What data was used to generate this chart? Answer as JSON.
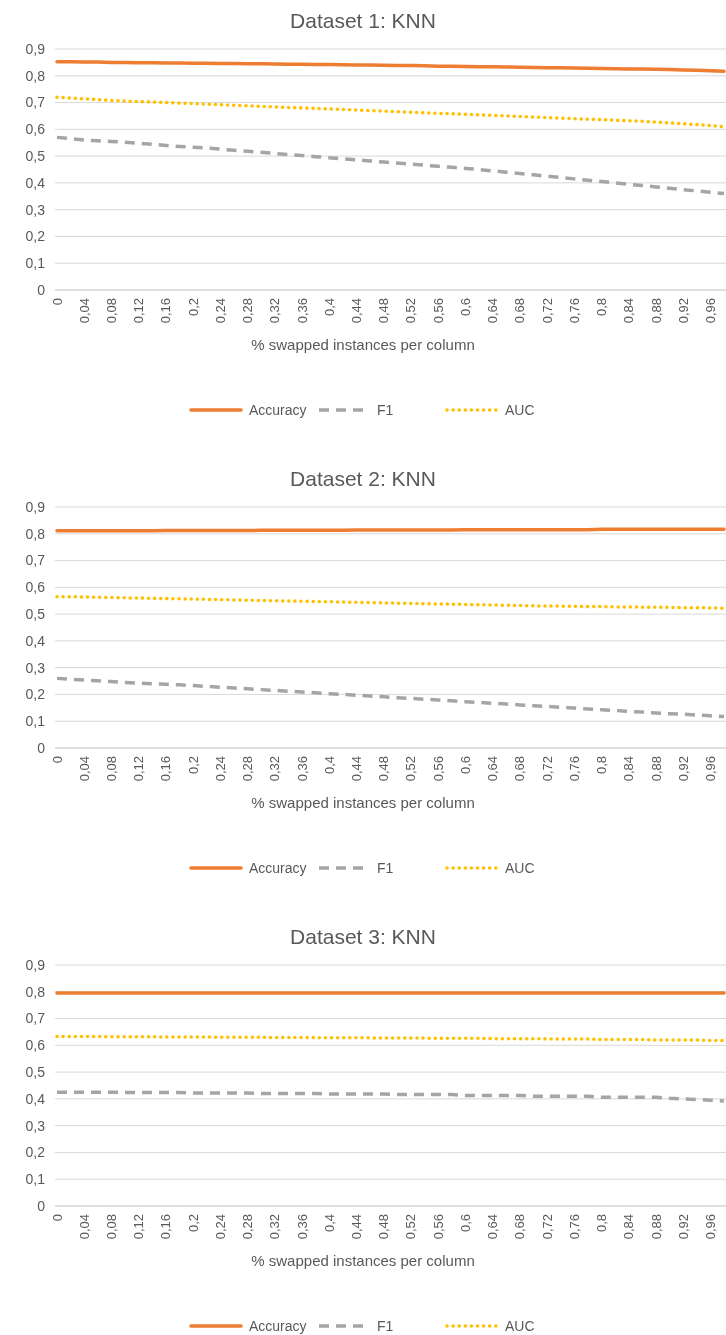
{
  "chart_data": [
    {
      "type": "line",
      "title": "Dataset 1: KNN",
      "xlabel": "% swapped instances per column",
      "categories": [
        "0",
        null,
        "0,04",
        null,
        "0,08",
        null,
        "0,12",
        null,
        "0,16",
        null,
        "0,2",
        null,
        "0,24",
        null,
        "0,28",
        null,
        "0,32",
        null,
        "0,36",
        null,
        "0,4",
        null,
        "0,44",
        null,
        "0,48",
        null,
        "0,52",
        null,
        "0,56",
        null,
        "0,6",
        null,
        "0,64",
        null,
        "0,68",
        null,
        "0,72",
        null,
        "0,76",
        null,
        "0,8",
        null,
        "0,84",
        null,
        "0,88",
        null,
        "0,92",
        null,
        "0,96",
        null
      ],
      "ylim": [
        0,
        0.9
      ],
      "yticks": [
        {
          "value": 0,
          "label": "0"
        },
        {
          "value": 0.1,
          "label": "0,1"
        },
        {
          "value": 0.2,
          "label": "0,2"
        },
        {
          "value": 0.3,
          "label": "0,3"
        },
        {
          "value": 0.4,
          "label": "0,4"
        },
        {
          "value": 0.5,
          "label": "0,5"
        },
        {
          "value": 0.6,
          "label": "0,6"
        },
        {
          "value": 0.7,
          "label": "0,7"
        },
        {
          "value": 0.8,
          "label": "0,8"
        },
        {
          "value": 0.9,
          "label": "0,9"
        }
      ],
      "grid": "y",
      "legend": "bottom",
      "series": [
        {
          "name": "Accuracy",
          "color": "#ed7d31",
          "line_style": "solid",
          "values": [
            0.852,
            0.852,
            0.851,
            0.851,
            0.85,
            0.85,
            0.849,
            0.849,
            0.848,
            0.848,
            0.847,
            0.847,
            0.846,
            0.846,
            0.845,
            0.845,
            0.844,
            0.843,
            0.843,
            0.842,
            0.842,
            0.841,
            0.84,
            0.84,
            0.839,
            0.838,
            0.838,
            0.837,
            0.836,
            0.836,
            0.835,
            0.834,
            0.834,
            0.833,
            0.832,
            0.831,
            0.83,
            0.83,
            0.829,
            0.828,
            0.827,
            0.826,
            0.825,
            0.825,
            0.824,
            0.823,
            0.822,
            0.821,
            0.819,
            0.817
          ]
        },
        {
          "name": "F1",
          "color": "#a5a5a5",
          "line_style": "dashed",
          "values": [
            0.57,
            0.565,
            0.56,
            0.557,
            0.555,
            0.552,
            0.548,
            0.544,
            0.54,
            0.536,
            0.533,
            0.53,
            0.526,
            0.522,
            0.518,
            0.514,
            0.51,
            0.506,
            0.502,
            0.498,
            0.494,
            0.49,
            0.486,
            0.482,
            0.478,
            0.474,
            0.47,
            0.466,
            0.462,
            0.458,
            0.454,
            0.45,
            0.445,
            0.44,
            0.435,
            0.43,
            0.425,
            0.42,
            0.415,
            0.41,
            0.405,
            0.4,
            0.395,
            0.39,
            0.385,
            0.38,
            0.375,
            0.37,
            0.365,
            0.36
          ]
        },
        {
          "name": "AUC",
          "color": "#ffc000",
          "line_style": "dotted",
          "values": [
            0.72,
            0.717,
            0.714,
            0.711,
            0.708,
            0.706,
            0.704,
            0.702,
            0.7,
            0.698,
            0.696,
            0.694,
            0.692,
            0.69,
            0.688,
            0.686,
            0.684,
            0.682,
            0.68,
            0.678,
            0.676,
            0.674,
            0.672,
            0.67,
            0.668,
            0.666,
            0.664,
            0.662,
            0.66,
            0.658,
            0.656,
            0.654,
            0.652,
            0.65,
            0.648,
            0.646,
            0.644,
            0.642,
            0.64,
            0.638,
            0.636,
            0.634,
            0.632,
            0.63,
            0.627,
            0.624,
            0.621,
            0.618,
            0.614,
            0.61
          ]
        }
      ]
    },
    {
      "type": "line",
      "title": "Dataset 2: KNN",
      "xlabel": "% swapped instances per column",
      "categories": [
        "0",
        null,
        "0,04",
        null,
        "0,08",
        null,
        "0,12",
        null,
        "0,16",
        null,
        "0,2",
        null,
        "0,24",
        null,
        "0,28",
        null,
        "0,32",
        null,
        "0,36",
        null,
        "0,4",
        null,
        "0,44",
        null,
        "0,48",
        null,
        "0,52",
        null,
        "0,56",
        null,
        "0,6",
        null,
        "0,64",
        null,
        "0,68",
        null,
        "0,72",
        null,
        "0,76",
        null,
        "0,8",
        null,
        "0,84",
        null,
        "0,88",
        null,
        "0,92",
        null,
        "0,96",
        null
      ],
      "ylim": [
        0,
        0.9
      ],
      "yticks": [
        {
          "value": 0,
          "label": "0"
        },
        {
          "value": 0.1,
          "label": "0,1"
        },
        {
          "value": 0.2,
          "label": "0,2"
        },
        {
          "value": 0.3,
          "label": "0,3"
        },
        {
          "value": 0.4,
          "label": "0,4"
        },
        {
          "value": 0.5,
          "label": "0,5"
        },
        {
          "value": 0.6,
          "label": "0,6"
        },
        {
          "value": 0.7,
          "label": "0,7"
        },
        {
          "value": 0.8,
          "label": "0,8"
        },
        {
          "value": 0.9,
          "label": "0,9"
        }
      ],
      "grid": "y",
      "legend": "bottom",
      "series": [
        {
          "name": "Accuracy",
          "color": "#ed7d31",
          "line_style": "solid",
          "values": [
            0.811,
            0.811,
            0.811,
            0.811,
            0.811,
            0.811,
            0.811,
            0.811,
            0.812,
            0.812,
            0.812,
            0.812,
            0.812,
            0.812,
            0.812,
            0.813,
            0.813,
            0.813,
            0.813,
            0.813,
            0.813,
            0.813,
            0.814,
            0.814,
            0.814,
            0.814,
            0.814,
            0.814,
            0.814,
            0.814,
            0.815,
            0.815,
            0.815,
            0.815,
            0.815,
            0.815,
            0.815,
            0.815,
            0.815,
            0.815,
            0.817,
            0.817,
            0.817,
            0.817,
            0.817,
            0.817,
            0.817,
            0.817,
            0.817,
            0.817
          ]
        },
        {
          "name": "F1",
          "color": "#a5a5a5",
          "line_style": "dashed",
          "values": [
            0.26,
            0.257,
            0.254,
            0.251,
            0.248,
            0.245,
            0.242,
            0.24,
            0.238,
            0.236,
            0.233,
            0.23,
            0.227,
            0.224,
            0.221,
            0.218,
            0.215,
            0.212,
            0.209,
            0.206,
            0.203,
            0.2,
            0.197,
            0.194,
            0.191,
            0.188,
            0.185,
            0.182,
            0.179,
            0.176,
            0.173,
            0.17,
            0.167,
            0.164,
            0.161,
            0.158,
            0.155,
            0.152,
            0.149,
            0.146,
            0.143,
            0.14,
            0.137,
            0.134,
            0.131,
            0.128,
            0.126,
            0.123,
            0.12,
            0.118
          ]
        },
        {
          "name": "AUC",
          "color": "#ffc000",
          "line_style": "dotted",
          "values": [
            0.565,
            0.565,
            0.564,
            0.563,
            0.562,
            0.561,
            0.56,
            0.559,
            0.558,
            0.557,
            0.556,
            0.555,
            0.554,
            0.553,
            0.552,
            0.551,
            0.55,
            0.549,
            0.548,
            0.547,
            0.546,
            0.545,
            0.544,
            0.543,
            0.542,
            0.541,
            0.54,
            0.539,
            0.538,
            0.537,
            0.536,
            0.535,
            0.534,
            0.533,
            0.532,
            0.531,
            0.53,
            0.53,
            0.529,
            0.528,
            0.528,
            0.527,
            0.527,
            0.526,
            0.526,
            0.525,
            0.524,
            0.524,
            0.523,
            0.522
          ]
        }
      ]
    },
    {
      "type": "line",
      "title": "Dataset 3: KNN",
      "xlabel": "% swapped instances per column",
      "categories": [
        "0",
        null,
        "0,04",
        null,
        "0,08",
        null,
        "0,12",
        null,
        "0,16",
        null,
        "0,2",
        null,
        "0,24",
        null,
        "0,28",
        null,
        "0,32",
        null,
        "0,36",
        null,
        "0,4",
        null,
        "0,44",
        null,
        "0,48",
        null,
        "0,52",
        null,
        "0,56",
        null,
        "0,6",
        null,
        "0,64",
        null,
        "0,68",
        null,
        "0,72",
        null,
        "0,76",
        null,
        "0,8",
        null,
        "0,84",
        null,
        "0,88",
        null,
        "0,92",
        null,
        "0,96",
        null
      ],
      "ylim": [
        0,
        0.9
      ],
      "yticks": [
        {
          "value": 0,
          "label": "0"
        },
        {
          "value": 0.1,
          "label": "0,1"
        },
        {
          "value": 0.2,
          "label": "0,2"
        },
        {
          "value": 0.3,
          "label": "0,3"
        },
        {
          "value": 0.4,
          "label": "0,4"
        },
        {
          "value": 0.5,
          "label": "0,5"
        },
        {
          "value": 0.6,
          "label": "0,6"
        },
        {
          "value": 0.7,
          "label": "0,7"
        },
        {
          "value": 0.8,
          "label": "0,8"
        },
        {
          "value": 0.9,
          "label": "0,9"
        }
      ],
      "grid": "y",
      "legend": "bottom",
      "series": [
        {
          "name": "Accuracy",
          "color": "#ed7d31",
          "line_style": "solid",
          "values": [
            0.795,
            0.795,
            0.795,
            0.795,
            0.795,
            0.795,
            0.795,
            0.795,
            0.795,
            0.795,
            0.795,
            0.795,
            0.795,
            0.795,
            0.795,
            0.795,
            0.795,
            0.795,
            0.795,
            0.795,
            0.795,
            0.795,
            0.795,
            0.795,
            0.795,
            0.795,
            0.795,
            0.795,
            0.795,
            0.795,
            0.795,
            0.795,
            0.795,
            0.795,
            0.795,
            0.795,
            0.795,
            0.795,
            0.795,
            0.795,
            0.795,
            0.795,
            0.795,
            0.795,
            0.795,
            0.795,
            0.795,
            0.795,
            0.795,
            0.795
          ]
        },
        {
          "name": "F1",
          "color": "#a5a5a5",
          "line_style": "dashed",
          "values": [
            0.425,
            0.425,
            0.425,
            0.425,
            0.425,
            0.424,
            0.424,
            0.424,
            0.424,
            0.424,
            0.422,
            0.422,
            0.422,
            0.422,
            0.422,
            0.42,
            0.42,
            0.42,
            0.42,
            0.42,
            0.418,
            0.418,
            0.418,
            0.418,
            0.418,
            0.416,
            0.416,
            0.416,
            0.416,
            0.416,
            0.413,
            0.413,
            0.413,
            0.413,
            0.413,
            0.41,
            0.41,
            0.41,
            0.41,
            0.41,
            0.406,
            0.406,
            0.406,
            0.406,
            0.406,
            0.402,
            0.4,
            0.398,
            0.395,
            0.392
          ]
        },
        {
          "name": "AUC",
          "color": "#ffc000",
          "line_style": "dotted",
          "values": [
            0.633,
            0.633,
            0.633,
            0.633,
            0.632,
            0.632,
            0.632,
            0.632,
            0.631,
            0.631,
            0.631,
            0.631,
            0.63,
            0.63,
            0.63,
            0.63,
            0.629,
            0.629,
            0.629,
            0.629,
            0.628,
            0.628,
            0.628,
            0.628,
            0.627,
            0.627,
            0.627,
            0.627,
            0.626,
            0.626,
            0.626,
            0.626,
            0.625,
            0.625,
            0.625,
            0.625,
            0.624,
            0.624,
            0.624,
            0.624,
            0.622,
            0.622,
            0.622,
            0.622,
            0.62,
            0.62,
            0.62,
            0.62,
            0.618,
            0.618
          ]
        }
      ]
    }
  ]
}
